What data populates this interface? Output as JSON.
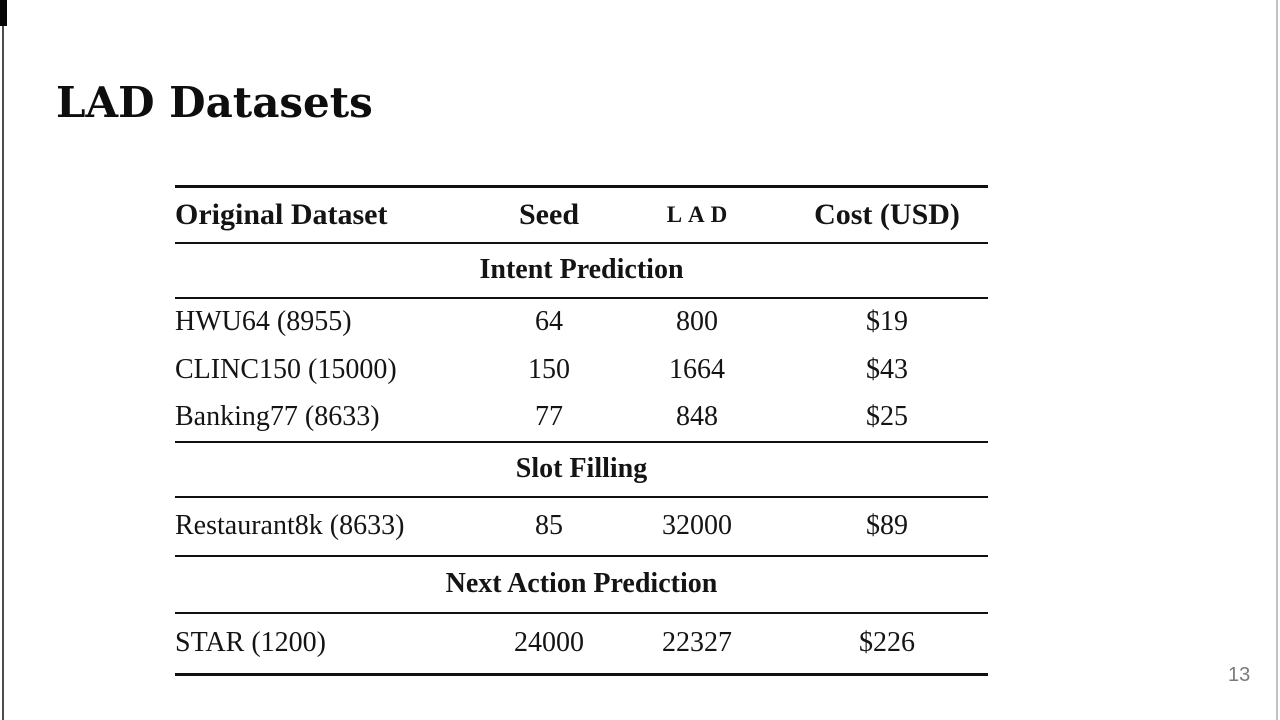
{
  "slide": {
    "title": "LAD Datasets",
    "page_number": "13"
  },
  "table": {
    "columns": [
      "Original Dataset",
      "Seed",
      "LAD",
      "Cost (USD)"
    ],
    "sections": [
      {
        "label": "Intent Prediction",
        "rows": [
          {
            "dataset": "HWU64 (8955)",
            "seed": "64",
            "lad": "800",
            "cost": "$19"
          },
          {
            "dataset": "CLINC150 (15000)",
            "seed": "150",
            "lad": "1664",
            "cost": "$43"
          },
          {
            "dataset": "Banking77 (8633)",
            "seed": "77",
            "lad": "848",
            "cost": "$25"
          }
        ]
      },
      {
        "label": "Slot Filling",
        "rows": [
          {
            "dataset": "Restaurant8k (8633)",
            "seed": "85",
            "lad": "32000",
            "cost": "$89"
          }
        ]
      },
      {
        "label": "Next Action Prediction",
        "rows": [
          {
            "dataset": "STAR (1200)",
            "seed": "24000",
            "lad": "22327",
            "cost": "$226"
          }
        ]
      }
    ]
  },
  "colors": {
    "background": "#ffffff",
    "text": "#141414",
    "rule": "#111111",
    "page_number": "#7a7a7a"
  }
}
